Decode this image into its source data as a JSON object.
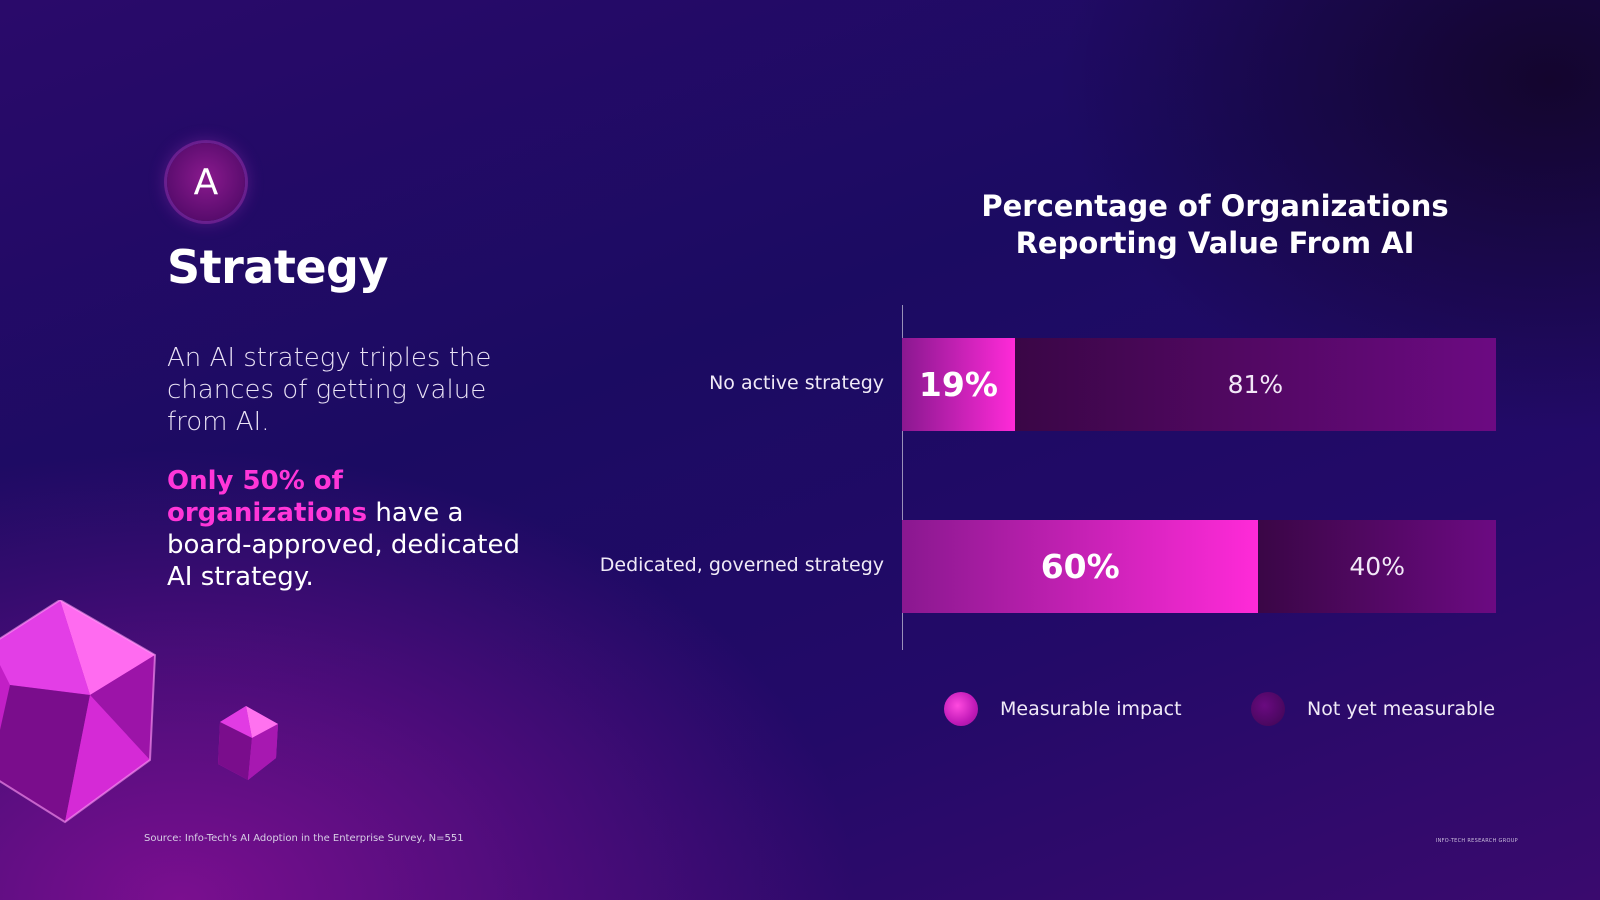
{
  "badge": {
    "letter": "A"
  },
  "section": {
    "title": "Strategy",
    "description": "An AI strategy triples the chances of getting value from AI.",
    "highlight_accent": "Only 50% of organizations",
    "highlight_rest": "have a board-approved, dedicated AI strategy."
  },
  "footer": {
    "source": "Source: Info-Tech's AI Adoption in the Enterprise Survey, N=551",
    "brand": "INFO-TECH RESEARCH GROUP"
  },
  "colors": {
    "measurable": "#ff2ad8",
    "not_yet_measurable": "#5a0870",
    "accent_text": "#ff36d8"
  },
  "chart_data": {
    "type": "bar",
    "orientation": "horizontal",
    "stacked": true,
    "title": "Percentage of Organizations Reporting Value From AI",
    "categories": [
      "No active strategy",
      "Dedicated, governed strategy"
    ],
    "series": [
      {
        "name": "Measurable impact",
        "values": [
          19,
          60
        ],
        "labels": [
          "19%",
          "60%"
        ]
      },
      {
        "name": "Not yet measurable",
        "values": [
          81,
          40
        ],
        "labels": [
          "81%",
          "40%"
        ]
      }
    ],
    "xlim": [
      0,
      100
    ],
    "grid": false,
    "legend_placement": "bottom"
  }
}
